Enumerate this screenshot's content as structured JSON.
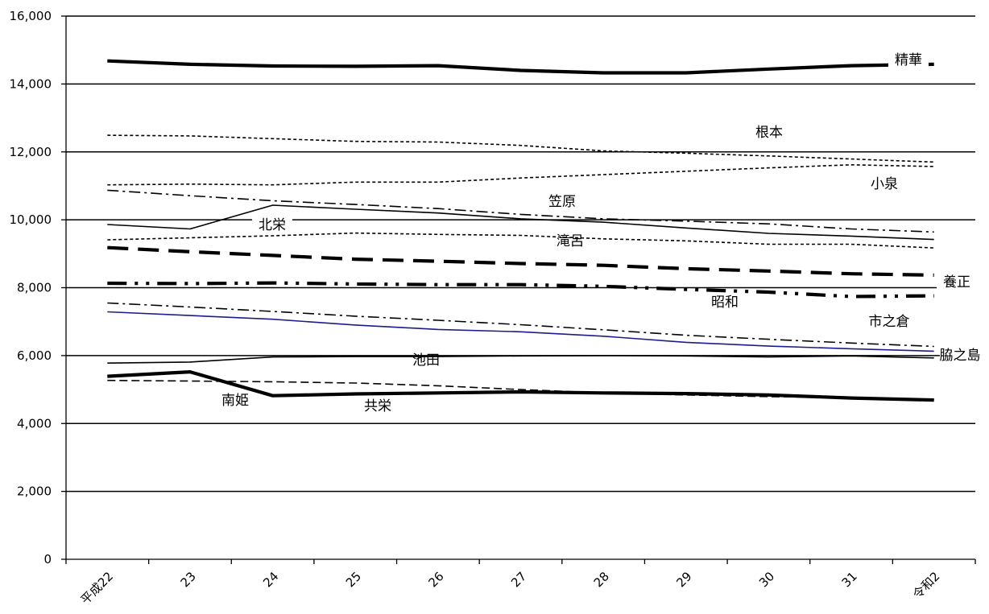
{
  "chart_data": {
    "type": "line",
    "x": [
      "平成22",
      "23",
      "24",
      "25",
      "26",
      "27",
      "28",
      "29",
      "30",
      "31",
      "令和2"
    ],
    "ylim": [
      0,
      16000
    ],
    "yticks": [
      0,
      2000,
      4000,
      6000,
      8000,
      10000,
      12000,
      14000,
      16000
    ],
    "ytick_labels": [
      "0",
      "2,000",
      "4,000",
      "6,000",
      "8,000",
      "10,000",
      "12,000",
      "14,000",
      "16,000"
    ],
    "grid": true,
    "series": [
      {
        "name": "精華",
        "style": "solid-heavy",
        "values": [
          14680,
          14580,
          14530,
          14520,
          14540,
          14400,
          14330,
          14330,
          14440,
          14540,
          14580
        ]
      },
      {
        "name": "根本",
        "style": "dotted",
        "values": [
          12490,
          12470,
          12390,
          12310,
          12290,
          12190,
          12030,
          11960,
          11880,
          11790,
          11700
        ]
      },
      {
        "name": "小泉",
        "style": "dotted",
        "values": [
          11030,
          11050,
          11030,
          11110,
          11110,
          11230,
          11330,
          11430,
          11530,
          11620,
          11570
        ]
      },
      {
        "name": "笠原",
        "style": "dash-dot",
        "values": [
          10870,
          10710,
          10560,
          10450,
          10330,
          10160,
          10030,
          9960,
          9880,
          9730,
          9640
        ]
      },
      {
        "name": "北栄",
        "style": "solid",
        "values": [
          9860,
          9730,
          10430,
          10310,
          10200,
          10030,
          9930,
          9760,
          9600,
          9520,
          9420
        ]
      },
      {
        "name": "滝呂",
        "style": "dotted",
        "values": [
          9410,
          9470,
          9530,
          9610,
          9570,
          9540,
          9440,
          9380,
          9280,
          9280,
          9170
        ]
      },
      {
        "name": "養正",
        "style": "dashed-heavy",
        "values": [
          9180,
          9060,
          8950,
          8840,
          8780,
          8710,
          8660,
          8560,
          8490,
          8410,
          8370
        ]
      },
      {
        "name": "昭和",
        "style": "dash-dot-dot-heavy",
        "values": [
          8130,
          8120,
          8140,
          8110,
          8090,
          8090,
          8040,
          7950,
          7870,
          7740,
          7760
        ]
      },
      {
        "name": "市之倉",
        "style": "dash-dot",
        "values": [
          7550,
          7430,
          7300,
          7160,
          7040,
          6910,
          6760,
          6600,
          6480,
          6370,
          6270
        ]
      },
      {
        "name": "脇之島",
        "style": "solid-blue",
        "values": [
          7290,
          7180,
          7070,
          6900,
          6770,
          6700,
          6570,
          6390,
          6280,
          6200,
          6130
        ]
      },
      {
        "name": "池田",
        "style": "solid",
        "values": [
          5780,
          5810,
          5960,
          5970,
          5970,
          5990,
          6000,
          5990,
          5960,
          5990,
          5930
        ]
      },
      {
        "name": "共栄",
        "style": "dashed",
        "values": [
          5270,
          5250,
          5230,
          5190,
          5110,
          5000,
          4900,
          4840,
          4790,
          4760,
          4710
        ]
      },
      {
        "name": "南姫",
        "style": "solid-heavy",
        "values": [
          5390,
          5520,
          4820,
          4870,
          4900,
          4930,
          4900,
          4880,
          4840,
          4750,
          4690
        ]
      }
    ]
  }
}
